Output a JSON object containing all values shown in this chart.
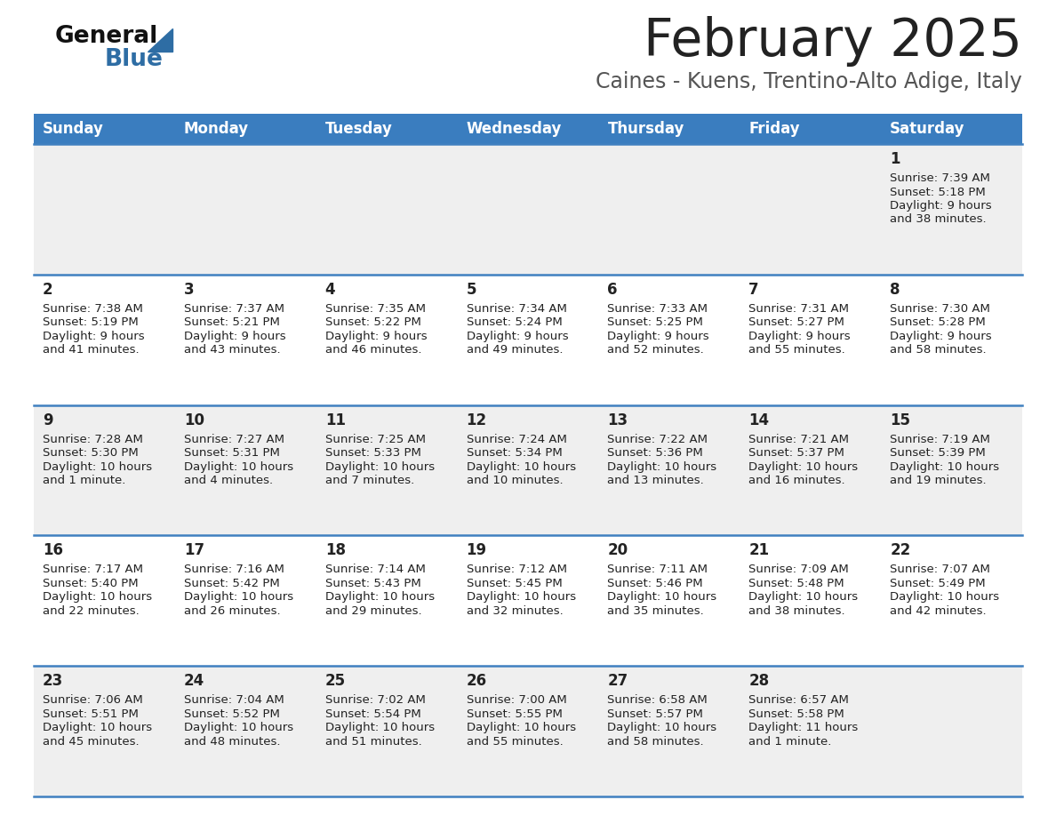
{
  "title": "February 2025",
  "subtitle": "Caines - Kuens, Trentino-Alto Adige, Italy",
  "days_of_week": [
    "Sunday",
    "Monday",
    "Tuesday",
    "Wednesday",
    "Thursday",
    "Friday",
    "Saturday"
  ],
  "header_bg": "#3a7dbf",
  "header_text": "#ffffff",
  "row_bg_odd": "#efefef",
  "row_bg_even": "#ffffff",
  "cell_border": "#4080c0",
  "day_num_color": "#222222",
  "info_color": "#222222",
  "title_color": "#222222",
  "subtitle_color": "#555555",
  "logo_general_color": "#111111",
  "logo_blue_color": "#2e6da4",
  "weeks": [
    [
      {
        "day": null
      },
      {
        "day": null
      },
      {
        "day": null
      },
      {
        "day": null
      },
      {
        "day": null
      },
      {
        "day": null
      },
      {
        "day": 1,
        "sunrise": "7:39 AM",
        "sunset": "5:18 PM",
        "daylight_line1": "Daylight: 9 hours",
        "daylight_line2": "and 38 minutes."
      }
    ],
    [
      {
        "day": 2,
        "sunrise": "7:38 AM",
        "sunset": "5:19 PM",
        "daylight_line1": "Daylight: 9 hours",
        "daylight_line2": "and 41 minutes."
      },
      {
        "day": 3,
        "sunrise": "7:37 AM",
        "sunset": "5:21 PM",
        "daylight_line1": "Daylight: 9 hours",
        "daylight_line2": "and 43 minutes."
      },
      {
        "day": 4,
        "sunrise": "7:35 AM",
        "sunset": "5:22 PM",
        "daylight_line1": "Daylight: 9 hours",
        "daylight_line2": "and 46 minutes."
      },
      {
        "day": 5,
        "sunrise": "7:34 AM",
        "sunset": "5:24 PM",
        "daylight_line1": "Daylight: 9 hours",
        "daylight_line2": "and 49 minutes."
      },
      {
        "day": 6,
        "sunrise": "7:33 AM",
        "sunset": "5:25 PM",
        "daylight_line1": "Daylight: 9 hours",
        "daylight_line2": "and 52 minutes."
      },
      {
        "day": 7,
        "sunrise": "7:31 AM",
        "sunset": "5:27 PM",
        "daylight_line1": "Daylight: 9 hours",
        "daylight_line2": "and 55 minutes."
      },
      {
        "day": 8,
        "sunrise": "7:30 AM",
        "sunset": "5:28 PM",
        "daylight_line1": "Daylight: 9 hours",
        "daylight_line2": "and 58 minutes."
      }
    ],
    [
      {
        "day": 9,
        "sunrise": "7:28 AM",
        "sunset": "5:30 PM",
        "daylight_line1": "Daylight: 10 hours",
        "daylight_line2": "and 1 minute."
      },
      {
        "day": 10,
        "sunrise": "7:27 AM",
        "sunset": "5:31 PM",
        "daylight_line1": "Daylight: 10 hours",
        "daylight_line2": "and 4 minutes."
      },
      {
        "day": 11,
        "sunrise": "7:25 AM",
        "sunset": "5:33 PM",
        "daylight_line1": "Daylight: 10 hours",
        "daylight_line2": "and 7 minutes."
      },
      {
        "day": 12,
        "sunrise": "7:24 AM",
        "sunset": "5:34 PM",
        "daylight_line1": "Daylight: 10 hours",
        "daylight_line2": "and 10 minutes."
      },
      {
        "day": 13,
        "sunrise": "7:22 AM",
        "sunset": "5:36 PM",
        "daylight_line1": "Daylight: 10 hours",
        "daylight_line2": "and 13 minutes."
      },
      {
        "day": 14,
        "sunrise": "7:21 AM",
        "sunset": "5:37 PM",
        "daylight_line1": "Daylight: 10 hours",
        "daylight_line2": "and 16 minutes."
      },
      {
        "day": 15,
        "sunrise": "7:19 AM",
        "sunset": "5:39 PM",
        "daylight_line1": "Daylight: 10 hours",
        "daylight_line2": "and 19 minutes."
      }
    ],
    [
      {
        "day": 16,
        "sunrise": "7:17 AM",
        "sunset": "5:40 PM",
        "daylight_line1": "Daylight: 10 hours",
        "daylight_line2": "and 22 minutes."
      },
      {
        "day": 17,
        "sunrise": "7:16 AM",
        "sunset": "5:42 PM",
        "daylight_line1": "Daylight: 10 hours",
        "daylight_line2": "and 26 minutes."
      },
      {
        "day": 18,
        "sunrise": "7:14 AM",
        "sunset": "5:43 PM",
        "daylight_line1": "Daylight: 10 hours",
        "daylight_line2": "and 29 minutes."
      },
      {
        "day": 19,
        "sunrise": "7:12 AM",
        "sunset": "5:45 PM",
        "daylight_line1": "Daylight: 10 hours",
        "daylight_line2": "and 32 minutes."
      },
      {
        "day": 20,
        "sunrise": "7:11 AM",
        "sunset": "5:46 PM",
        "daylight_line1": "Daylight: 10 hours",
        "daylight_line2": "and 35 minutes."
      },
      {
        "day": 21,
        "sunrise": "7:09 AM",
        "sunset": "5:48 PM",
        "daylight_line1": "Daylight: 10 hours",
        "daylight_line2": "and 38 minutes."
      },
      {
        "day": 22,
        "sunrise": "7:07 AM",
        "sunset": "5:49 PM",
        "daylight_line1": "Daylight: 10 hours",
        "daylight_line2": "and 42 minutes."
      }
    ],
    [
      {
        "day": 23,
        "sunrise": "7:06 AM",
        "sunset": "5:51 PM",
        "daylight_line1": "Daylight: 10 hours",
        "daylight_line2": "and 45 minutes."
      },
      {
        "day": 24,
        "sunrise": "7:04 AM",
        "sunset": "5:52 PM",
        "daylight_line1": "Daylight: 10 hours",
        "daylight_line2": "and 48 minutes."
      },
      {
        "day": 25,
        "sunrise": "7:02 AM",
        "sunset": "5:54 PM",
        "daylight_line1": "Daylight: 10 hours",
        "daylight_line2": "and 51 minutes."
      },
      {
        "day": 26,
        "sunrise": "7:00 AM",
        "sunset": "5:55 PM",
        "daylight_line1": "Daylight: 10 hours",
        "daylight_line2": "and 55 minutes."
      },
      {
        "day": 27,
        "sunrise": "6:58 AM",
        "sunset": "5:57 PM",
        "daylight_line1": "Daylight: 10 hours",
        "daylight_line2": "and 58 minutes."
      },
      {
        "day": 28,
        "sunrise": "6:57 AM",
        "sunset": "5:58 PM",
        "daylight_line1": "Daylight: 11 hours",
        "daylight_line2": "and 1 minute."
      },
      {
        "day": null
      }
    ]
  ]
}
